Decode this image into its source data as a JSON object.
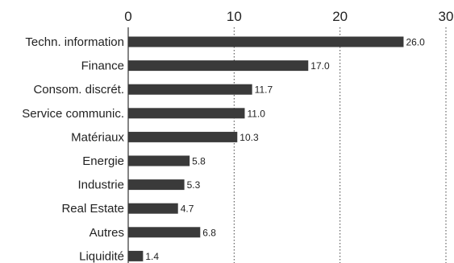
{
  "chart_data": {
    "type": "bar",
    "orientation": "horizontal",
    "categories": [
      "Techn. information",
      "Finance",
      "Consom. discrét.",
      "Service communic.",
      "Matériaux",
      "Energie",
      "Industrie",
      "Real Estate",
      "Autres",
      "Liquidité"
    ],
    "values": [
      26.0,
      17.0,
      11.7,
      11.0,
      10.3,
      5.8,
      5.3,
      4.7,
      6.8,
      1.4
    ],
    "value_labels": [
      "26.0",
      "17.0",
      "11.7",
      "11.0",
      "10.3",
      "5.8",
      "5.3",
      "4.7",
      "6.8",
      "1.4"
    ],
    "xlim": [
      0,
      30
    ],
    "xticks": [
      0,
      10,
      20,
      30
    ],
    "xtick_labels": [
      "0",
      "10",
      "20",
      "30"
    ],
    "xaxis_position": "top",
    "grid": "vertical-dotted",
    "legend": "none",
    "colors": {
      "bar": "#3a3a3a",
      "text": "#222222"
    }
  }
}
